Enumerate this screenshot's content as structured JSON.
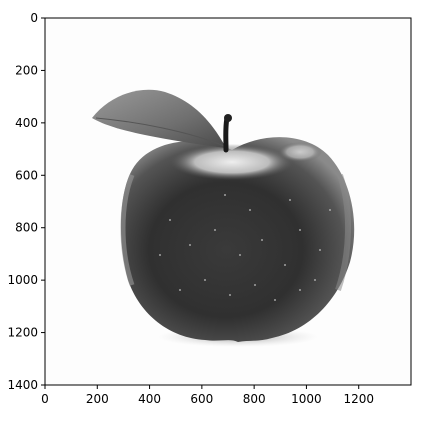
{
  "figure": {
    "type": "image-display",
    "image_subject": "apple",
    "colormap": "grayscale"
  },
  "axes": {
    "xlim": [
      0,
      1400
    ],
    "ylim": [
      1400,
      0
    ],
    "x_ticks": [
      {
        "value": 0,
        "label": "0"
      },
      {
        "value": 200,
        "label": "200"
      },
      {
        "value": 400,
        "label": "400"
      },
      {
        "value": 600,
        "label": "600"
      },
      {
        "value": 800,
        "label": "800"
      },
      {
        "value": 1000,
        "label": "1000"
      },
      {
        "value": 1200,
        "label": "1200"
      }
    ],
    "y_ticks": [
      {
        "value": 0,
        "label": "0"
      },
      {
        "value": 200,
        "label": "200"
      },
      {
        "value": 400,
        "label": "400"
      },
      {
        "value": 600,
        "label": "600"
      },
      {
        "value": 800,
        "label": "800"
      },
      {
        "value": 1000,
        "label": "1000"
      },
      {
        "value": 1200,
        "label": "1200"
      },
      {
        "value": 1400,
        "label": "1400"
      }
    ]
  },
  "colors": {
    "background": "#ffffff",
    "apple_dark": "#2a2a2a",
    "apple_mid": "#4a4a4a",
    "highlight": "#d8d8d8",
    "leaf": "#7d7d7d",
    "stem": "#1a1a1a"
  }
}
